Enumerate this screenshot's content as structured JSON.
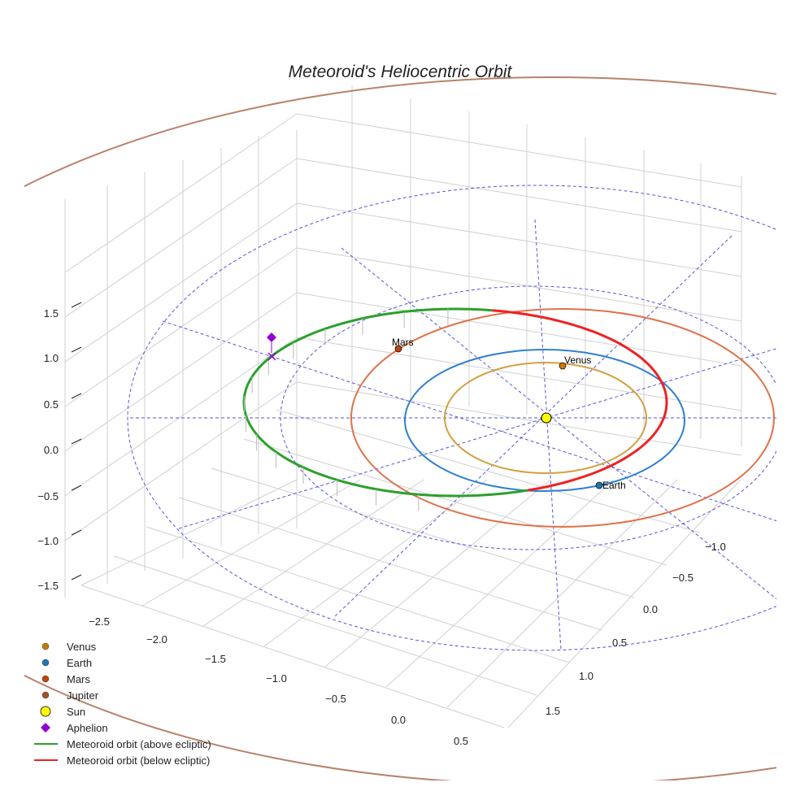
{
  "chart_data": {
    "type": "line",
    "title": "Meteoroid's Heliocentric Orbit",
    "axes": {
      "x_ticks": [
        "−2.5",
        "−2.0",
        "−1.5",
        "−1.0",
        "−0.5",
        "0.0",
        "0.5"
      ],
      "y_ticks": [
        "−1.0",
        "−0.5",
        "0.0",
        "0.5",
        "1.0",
        "1.5"
      ],
      "z_ticks": [
        "1.5",
        "1.0",
        "0.5",
        "0.0",
        "−0.5",
        "−1.0",
        "−1.5"
      ]
    },
    "bodies": [
      {
        "name": "Venus",
        "color": "#c57a0a",
        "orbit_color": "#d4a040",
        "label": "Venus"
      },
      {
        "name": "Earth",
        "color": "#1f77b4",
        "orbit_color": "#2f7fd0",
        "label": "Earth"
      },
      {
        "name": "Mars",
        "color": "#c1440e",
        "orbit_color": "#e0704a",
        "label": "Mars"
      },
      {
        "name": "Jupiter",
        "color": "#a0522d",
        "orbit_color": "#b8826a"
      },
      {
        "name": "Sun",
        "color": "#ffff00"
      }
    ],
    "aphelion": {
      "color": "#9400d3"
    },
    "meteoroid": {
      "above_color": "#2ca02c",
      "below_color": "#ee2222"
    },
    "legend": {
      "placement": "bottom-left",
      "entries": [
        "Venus",
        "Earth",
        "Mars",
        "Jupiter",
        "Sun",
        "Aphelion",
        "Meteoroid orbit (above ecliptic)",
        "Meteoroid orbit (below ecliptic)"
      ]
    }
  }
}
